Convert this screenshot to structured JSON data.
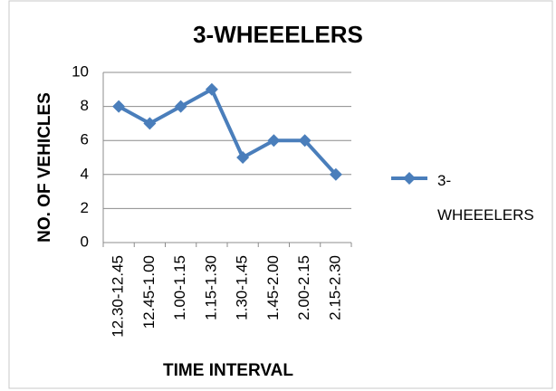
{
  "chart_data": {
    "type": "line",
    "title": "3-WHEEELERS",
    "y_label": "NO. OF VEHICLES",
    "x_label": "TIME INTERVAL",
    "categories": [
      "12.30-12.45",
      "12.45-1.00",
      "1.00-1.15",
      "1.15-1.30",
      "1.30-1.45",
      "1.45-2.00",
      "2.00-2.15",
      "2.15-2.30"
    ],
    "series": [
      {
        "name": "3-WHEEELERS",
        "color": "#4a7ebb",
        "values": [
          8,
          7,
          8,
          9,
          5,
          6,
          6,
          4
        ]
      }
    ],
    "ylim": [
      0,
      10
    ],
    "yticks": [
      0,
      2,
      4,
      6,
      8,
      10
    ],
    "grid": true,
    "legend": "right"
  }
}
